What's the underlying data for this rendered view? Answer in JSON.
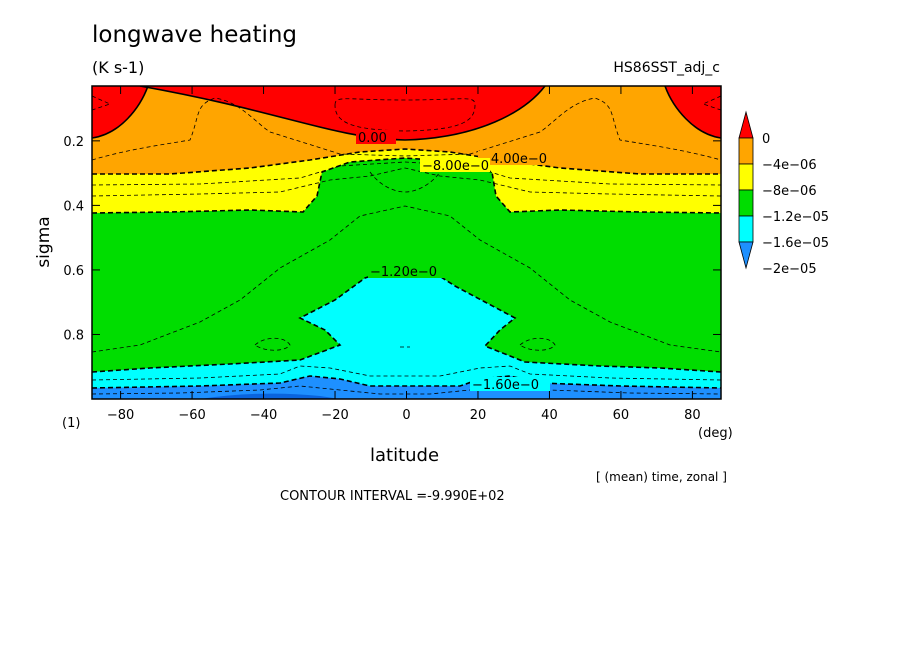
{
  "header": {
    "title": "longwave heating",
    "units": "(K s-1)",
    "dataset": "HS86SST_adj_c"
  },
  "footer": {
    "panel_id": "(1)",
    "averaging": "[ (mean) time, zonal ]",
    "contour_interval": "CONTOUR INTERVAL =-9.990E+02"
  },
  "chart_data": {
    "type": "heatmap",
    "title": "longwave heating",
    "xlabel": "latitude",
    "x_unit": "(deg)",
    "ylabel": "sigma",
    "xlim": [
      -88,
      88
    ],
    "ylim": [
      1.0,
      0.03
    ],
    "x_ticks": [
      -80,
      -60,
      -40,
      -20,
      0,
      20,
      40,
      60,
      80
    ],
    "y_ticks": [
      0.2,
      0.4,
      0.6,
      0.8
    ],
    "colorbar": {
      "levels": [
        "0",
        "−4e−06",
        "−8e−06",
        "−1.2e−05",
        "−1.6e−05",
        "−2e−05"
      ],
      "colors": [
        "#ff0000",
        "#ffa500",
        "#ffff00",
        "#00dd00",
        "#00ffff",
        "#1e90ff"
      ],
      "extend": "both"
    },
    "contour_labels": [
      "0.00",
      "−4.00e−0",
      "−8.00e−0",
      "−1.20e−0",
      "−1.60e−0"
    ],
    "fields": [
      {
        "name": "0 and above",
        "sigma_top_at_pole": 0.03,
        "sigma_bottom_at_pole": 0.19,
        "sigma_bottom_at_equator": 0.13
      },
      {
        "name": "−4e−06 to 0",
        "sigma_bottom_at_pole": 0.3,
        "sigma_bottom_at_equator": 0.25
      },
      {
        "name": "−8e−06 to −4e−06",
        "sigma_bottom_at_pole": 0.37,
        "sigma_bottom_at_equator": 0.26
      },
      {
        "name": "−1.2e−05 to −8e−06",
        "sigma_top_at_pole": 0.37,
        "sigma_bottom_at_pole": 0.9,
        "sigma_bottom_at_equator": 0.65
      },
      {
        "name": "−1.6e−05 to −1.2e−05",
        "sigma_top_at_pole": 0.9,
        "sigma_bottom_at_pole": 0.97,
        "sigma_bottom_at_equator": 0.95
      },
      {
        "name": "below −1.6e−05",
        "sigma_top_at_pole": 0.97,
        "sigma_bottom_at_pole": 1.0
      }
    ]
  }
}
